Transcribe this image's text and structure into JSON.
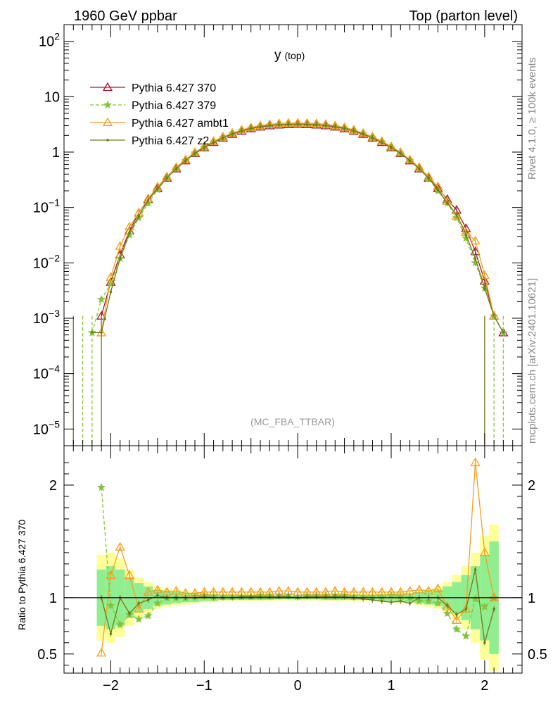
{
  "header": {
    "left": "1960 GeV ppbar",
    "right": "Top (parton level)"
  },
  "side_labels": {
    "rivet": "Rivet 4.1.0, ≥ 100k events",
    "mcplots": "mcplots.cern.ch [arXiv:2401.10621]"
  },
  "plot_title": "y",
  "plot_title_sub": "(top)",
  "analysis_tag": "(MC_FBA_TTBAR)",
  "ratio_ylabel": "Ratio to Pythia 6.427 370",
  "chart_data": [
    {
      "type": "line",
      "name": "main",
      "yscale": "log",
      "xlim": [
        -2.5,
        2.4
      ],
      "ylim": [
        5e-06,
        200
      ],
      "x_ticks": [
        -2,
        -1,
        0,
        1,
        2
      ],
      "x_tick_labels": [
        "−2",
        "−1",
        "0",
        "1",
        "2"
      ],
      "y_ticks": [
        1e-05,
        0.0001,
        0.001,
        0.01,
        0.1,
        1,
        10,
        100
      ],
      "y_tick_labels": [
        {
          "base": "10",
          "exp": "−5"
        },
        {
          "base": "10",
          "exp": "−4"
        },
        {
          "base": "10",
          "exp": "−3"
        },
        {
          "base": "10",
          "exp": "−2"
        },
        {
          "base": "10",
          "exp": "−1"
        },
        {
          "base": "1",
          "exp": ""
        },
        {
          "base": "10",
          "exp": ""
        },
        {
          "base": "10",
          "exp": "2"
        }
      ],
      "x": [
        -2.2,
        -2.1,
        -2.0,
        -1.9,
        -1.8,
        -1.7,
        -1.6,
        -1.5,
        -1.4,
        -1.3,
        -1.2,
        -1.1,
        -1.0,
        -0.9,
        -0.8,
        -0.7,
        -0.6,
        -0.5,
        -0.4,
        -0.3,
        -0.2,
        -0.1,
        0.0,
        0.1,
        0.2,
        0.3,
        0.4,
        0.5,
        0.6,
        0.7,
        0.8,
        0.9,
        1.0,
        1.1,
        1.2,
        1.3,
        1.4,
        1.5,
        1.6,
        1.7,
        1.8,
        1.9,
        2.0,
        2.1,
        2.2
      ],
      "series": [
        {
          "name": "Pythia 6.427 370",
          "color": "#9e1a2a",
          "marker": "triangle-open",
          "dash": "solid",
          "values": [
            null,
            0.0011,
            0.0045,
            0.014,
            0.038,
            0.08,
            0.14,
            0.22,
            0.34,
            0.5,
            0.7,
            0.95,
            1.2,
            1.5,
            1.8,
            2.1,
            2.4,
            2.65,
            2.85,
            3.0,
            3.1,
            3.15,
            3.18,
            3.15,
            3.1,
            3.0,
            2.85,
            2.65,
            2.4,
            2.1,
            1.8,
            1.5,
            1.2,
            0.95,
            0.7,
            0.5,
            0.34,
            0.22,
            0.14,
            0.09,
            0.042,
            0.016,
            0.0047,
            0.0011,
            0.00055
          ]
        },
        {
          "name": "Pythia 6.427 379",
          "color": "#84c43c",
          "marker": "star",
          "dash": "dashed",
          "values": [
            0.00055,
            0.0022,
            0.0042,
            0.012,
            0.032,
            0.065,
            0.12,
            0.21,
            0.34,
            0.5,
            0.7,
            0.96,
            1.22,
            1.52,
            1.82,
            2.13,
            2.43,
            2.68,
            2.9,
            3.05,
            3.15,
            3.2,
            3.22,
            3.2,
            3.15,
            3.05,
            2.9,
            2.68,
            2.43,
            2.13,
            1.82,
            1.52,
            1.22,
            0.96,
            0.7,
            0.5,
            0.33,
            0.2,
            0.12,
            0.065,
            0.028,
            0.01,
            0.0035,
            0.0011,
            0.00055
          ]
        },
        {
          "name": "Pythia 6.427 ambt1",
          "color": "#f0a020",
          "marker": "triangle-open",
          "dash": "solid",
          "values": [
            null,
            0.00055,
            0.0055,
            0.02,
            0.045,
            0.08,
            0.145,
            0.235,
            0.36,
            0.53,
            0.73,
            0.99,
            1.26,
            1.57,
            1.89,
            2.2,
            2.52,
            2.78,
            3.0,
            3.17,
            3.28,
            3.33,
            3.35,
            3.33,
            3.28,
            3.17,
            3.0,
            2.78,
            2.52,
            2.2,
            1.89,
            1.57,
            1.26,
            0.99,
            0.73,
            0.53,
            0.36,
            0.24,
            0.13,
            0.07,
            0.036,
            0.025,
            0.006,
            0.0011,
            null
          ]
        },
        {
          "name": "Pythia 6.427 z2",
          "color": "#6f7a1a",
          "marker": "dot",
          "dash": "solid",
          "values": [
            0.00055,
            0.00055,
            0.003,
            0.012,
            0.035,
            0.07,
            0.135,
            0.22,
            0.34,
            0.5,
            0.7,
            0.95,
            1.22,
            1.5,
            1.8,
            2.12,
            2.42,
            2.68,
            2.88,
            3.03,
            3.13,
            3.18,
            3.2,
            3.18,
            3.13,
            3.03,
            2.88,
            2.68,
            2.42,
            2.12,
            1.8,
            1.5,
            1.22,
            0.95,
            0.7,
            0.5,
            0.34,
            0.21,
            0.12,
            0.075,
            0.032,
            0.012,
            0.0035,
            0.0011,
            0.00055
          ]
        }
      ]
    },
    {
      "type": "line",
      "name": "ratio",
      "yscale": "linear",
      "xlim": [
        -2.5,
        2.4
      ],
      "ylim": [
        0.33,
        2.35
      ],
      "x_ticks": [
        -2,
        -1,
        0,
        1,
        2
      ],
      "x_tick_labels": [
        "−2",
        "−1",
        "0",
        "1",
        "2"
      ],
      "y_ticks": [
        0.5,
        1,
        2
      ],
      "y_tick_labels": [
        "0.5",
        "1",
        "2"
      ],
      "reference_line": 1.0,
      "x": [
        -2.1,
        -2.0,
        -1.9,
        -1.8,
        -1.7,
        -1.6,
        -1.5,
        -1.4,
        -1.3,
        -1.2,
        -1.1,
        -1.0,
        -0.9,
        -0.8,
        -0.7,
        -0.6,
        -0.5,
        -0.4,
        -0.3,
        -0.2,
        -0.1,
        0.0,
        0.1,
        0.2,
        0.3,
        0.4,
        0.5,
        0.6,
        0.7,
        0.8,
        0.9,
        1.0,
        1.1,
        1.2,
        1.3,
        1.4,
        1.5,
        1.6,
        1.7,
        1.8,
        1.9,
        2.0,
        2.1
      ],
      "band_inner": [
        0.75,
        0.72,
        0.75,
        0.82,
        0.87,
        0.9,
        0.93,
        0.94,
        0.95,
        0.96,
        0.96,
        0.97,
        0.97,
        0.98,
        0.98,
        0.98,
        0.98,
        0.98,
        0.98,
        0.985,
        0.985,
        0.985,
        0.985,
        0.985,
        0.98,
        0.98,
        0.98,
        0.98,
        0.98,
        0.98,
        0.97,
        0.97,
        0.96,
        0.96,
        0.95,
        0.94,
        0.93,
        0.9,
        0.86,
        0.8,
        0.72,
        0.62,
        0.5
      ],
      "band_outer": [
        0.62,
        0.6,
        0.65,
        0.75,
        0.82,
        0.86,
        0.9,
        0.92,
        0.93,
        0.94,
        0.95,
        0.96,
        0.96,
        0.97,
        0.97,
        0.97,
        0.97,
        0.97,
        0.97,
        0.975,
        0.975,
        0.975,
        0.975,
        0.975,
        0.97,
        0.97,
        0.97,
        0.97,
        0.97,
        0.97,
        0.96,
        0.96,
        0.95,
        0.95,
        0.93,
        0.92,
        0.9,
        0.86,
        0.8,
        0.72,
        0.6,
        0.45,
        0.35
      ],
      "series": [
        {
          "name": "Pythia 6.427 379",
          "color": "#84c43c",
          "marker": "star",
          "dash": "dashed",
          "values": [
            1.98,
            0.93,
            0.76,
            0.85,
            0.81,
            0.84,
            0.95,
            1.0,
            1.0,
            1.0,
            1.01,
            1.02,
            1.01,
            1.01,
            1.01,
            1.01,
            1.01,
            1.02,
            1.02,
            1.02,
            1.02,
            1.01,
            1.02,
            1.02,
            1.02,
            1.02,
            1.02,
            1.01,
            1.01,
            1.01,
            1.01,
            1.02,
            1.01,
            1.0,
            0.97,
            0.97,
            0.95,
            0.86,
            0.72,
            0.66,
            0.99,
            0.92,
            1.0
          ]
        },
        {
          "name": "Pythia 6.427 ambt1",
          "color": "#f0a020",
          "marker": "triangle-open",
          "dash": "solid",
          "values": [
            0.51,
            1.2,
            1.45,
            1.2,
            0.9,
            1.05,
            1.07,
            1.05,
            1.06,
            1.04,
            1.04,
            1.05,
            1.05,
            1.05,
            1.05,
            1.05,
            1.05,
            1.05,
            1.05,
            1.06,
            1.06,
            1.05,
            1.05,
            1.05,
            1.05,
            1.06,
            1.05,
            1.05,
            1.05,
            1.05,
            1.05,
            1.05,
            1.05,
            1.06,
            1.07,
            1.06,
            1.08,
            0.92,
            0.8,
            0.9,
            2.2,
            1.4,
            1.0
          ]
        },
        {
          "name": "Pythia 6.427 z2",
          "color": "#6f7a1a",
          "marker": "dot",
          "dash": "solid",
          "values": [
            1.0,
            0.68,
            1.0,
            0.86,
            0.95,
            0.98,
            1.02,
            1.0,
            1.0,
            1.0,
            1.0,
            1.01,
            1.0,
            1.0,
            1.0,
            1.01,
            1.01,
            1.01,
            1.01,
            1.01,
            1.01,
            1.0,
            1.01,
            1.01,
            1.01,
            1.01,
            1.01,
            1.0,
            0.99,
            0.98,
            0.97,
            0.96,
            0.97,
            0.95,
            1.0,
            1.0,
            1.0,
            0.93,
            0.85,
            0.9,
            1.25,
            0.6,
            0.9
          ]
        }
      ]
    }
  ]
}
